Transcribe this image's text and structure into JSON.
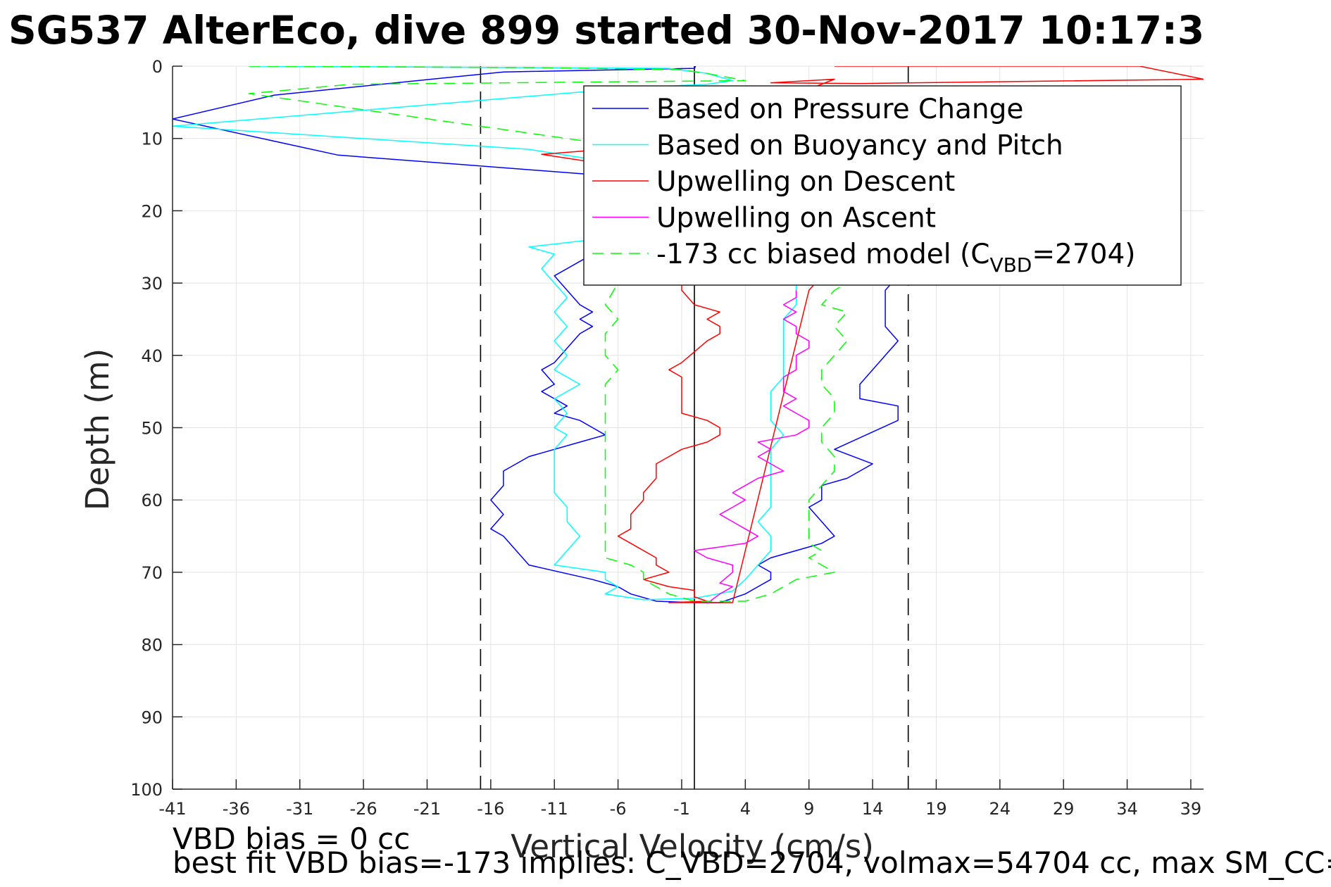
{
  "chart_data": {
    "type": "line",
    "title": "SG537 AlterEco, dive 899 started 30-Nov-2017 10:17:3",
    "xlabel": "Vertical Velocity (cm/s)",
    "ylabel": "Depth (m)",
    "xlim": [
      -41,
      40
    ],
    "ylim": [
      0,
      100
    ],
    "y_reversed": true,
    "grid": true,
    "x_ticks": [
      -41,
      -36,
      -31,
      -26,
      -21,
      -16,
      -11,
      -6,
      -1,
      4,
      9,
      14,
      19,
      24,
      29,
      34,
      39
    ],
    "y_ticks": [
      0,
      10,
      20,
      30,
      40,
      50,
      60,
      70,
      80,
      90,
      100
    ],
    "reference_lines": [
      {
        "x": -16.8,
        "style": "dashed",
        "color": "#000000"
      },
      {
        "x": 0,
        "style": "solid",
        "color": "#000000"
      },
      {
        "x": 16.8,
        "style": "dashed",
        "color": "#000000"
      }
    ],
    "legend_position": "top-right",
    "series": [
      {
        "name": "Based on Pressure Change",
        "color": "#0000ff",
        "style": "solid",
        "points": [
          [
            0.1,
            0
          ],
          [
            0.0,
            0.3
          ],
          [
            -15,
            0.8
          ],
          [
            -33,
            4
          ],
          [
            -41,
            7.3
          ],
          [
            -28,
            12.3
          ],
          [
            -8,
            15
          ],
          [
            -6,
            17
          ],
          [
            -5,
            19
          ],
          [
            -3,
            21
          ],
          [
            -5,
            23
          ],
          [
            -7,
            25
          ],
          [
            -9,
            27
          ],
          [
            -11,
            29
          ],
          [
            -10,
            31
          ],
          [
            -9,
            33
          ],
          [
            -8,
            34
          ],
          [
            -9,
            35
          ],
          [
            -8,
            36
          ],
          [
            -9,
            37
          ],
          [
            -10,
            39
          ],
          [
            -11,
            41
          ],
          [
            -12,
            42
          ],
          [
            -11,
            44
          ],
          [
            -12,
            45
          ],
          [
            -11,
            46
          ],
          [
            -10,
            47
          ],
          [
            -11,
            48
          ],
          [
            -9,
            49
          ],
          [
            -8,
            50
          ],
          [
            -7,
            51
          ],
          [
            -9,
            52
          ],
          [
            -13,
            54
          ],
          [
            -15,
            56
          ],
          [
            -15,
            58
          ],
          [
            -16,
            60
          ],
          [
            -15,
            62
          ],
          [
            -16,
            64
          ],
          [
            -15,
            65
          ],
          [
            -14,
            67
          ],
          [
            -13,
            69
          ],
          [
            -8,
            71
          ],
          [
            -6,
            72
          ],
          [
            -5,
            73
          ],
          [
            -3,
            74
          ],
          [
            0,
            74.2
          ],
          [
            2,
            74.2
          ],
          [
            3,
            73.6
          ],
          [
            4,
            73
          ],
          [
            5,
            72
          ],
          [
            6,
            71
          ],
          [
            6,
            70
          ],
          [
            5,
            69
          ],
          [
            6,
            68
          ],
          [
            8,
            67
          ],
          [
            10,
            66
          ],
          [
            11,
            65
          ],
          [
            10,
            63
          ],
          [
            9,
            61
          ],
          [
            10,
            60
          ],
          [
            10,
            58
          ],
          [
            12,
            57
          ],
          [
            14,
            55
          ],
          [
            11,
            53
          ],
          [
            16,
            49
          ],
          [
            16,
            47
          ],
          [
            13,
            46
          ],
          [
            13,
            44
          ],
          [
            14,
            42
          ],
          [
            15,
            40
          ],
          [
            16,
            38
          ],
          [
            15,
            36
          ],
          [
            15,
            31
          ],
          [
            16,
            29
          ]
        ]
      },
      {
        "name": "Based on Buoyancy and Pitch",
        "color": "#00ffff",
        "style": "solid",
        "points": [
          [
            -35,
            0
          ],
          [
            -2,
            0.3
          ],
          [
            1,
            1
          ],
          [
            3,
            2
          ],
          [
            1,
            2.5
          ],
          [
            -5,
            3
          ],
          [
            -41,
            8.3
          ],
          [
            -13,
            11.5
          ],
          [
            -4,
            14
          ],
          [
            -3,
            16
          ],
          [
            -3,
            19
          ],
          [
            -5,
            22
          ],
          [
            -8,
            24
          ],
          [
            -13,
            25
          ],
          [
            -11,
            26
          ],
          [
            -12,
            28
          ],
          [
            -11,
            30
          ],
          [
            -10,
            32
          ],
          [
            -11,
            34
          ],
          [
            -10,
            36
          ],
          [
            -11,
            38
          ],
          [
            -10,
            40
          ],
          [
            -11,
            42
          ],
          [
            -9,
            44
          ],
          [
            -11,
            46
          ],
          [
            -10,
            48
          ],
          [
            -11,
            50
          ],
          [
            -10,
            51
          ],
          [
            -11,
            53
          ],
          [
            -11,
            55
          ],
          [
            -11,
            57
          ],
          [
            -11,
            59
          ],
          [
            -10,
            61
          ],
          [
            -10,
            63
          ],
          [
            -9,
            65
          ],
          [
            -10,
            67
          ],
          [
            -11,
            69
          ],
          [
            -7,
            70
          ],
          [
            -7,
            71
          ],
          [
            -6,
            72
          ],
          [
            -7,
            73
          ],
          [
            -4,
            73.8
          ],
          [
            0,
            73.6
          ],
          [
            3,
            72.6
          ],
          [
            4,
            71
          ],
          [
            5,
            69
          ],
          [
            6,
            67
          ],
          [
            6,
            65
          ],
          [
            5,
            63
          ],
          [
            6,
            61
          ],
          [
            6,
            59
          ],
          [
            6,
            56
          ],
          [
            6,
            53
          ],
          [
            7,
            51
          ],
          [
            6,
            49
          ],
          [
            6,
            47
          ],
          [
            6,
            45
          ],
          [
            7,
            43
          ],
          [
            7,
            40
          ],
          [
            7,
            38
          ],
          [
            7,
            35
          ],
          [
            8,
            33
          ],
          [
            8,
            30
          ]
        ]
      },
      {
        "name": "Upwelling on Descent",
        "color": "#ff0000",
        "style": "solid",
        "points": [
          [
            11,
            0
          ],
          [
            35,
            0
          ],
          [
            40,
            1.8
          ],
          [
            13,
            2.4
          ],
          [
            6,
            2.3
          ],
          [
            11,
            1.8
          ],
          [
            -2,
            10.8
          ],
          [
            -12,
            12.2
          ],
          [
            -9,
            13
          ],
          [
            -5,
            14
          ],
          [
            -1,
            30
          ],
          [
            -1,
            31
          ],
          [
            0,
            33
          ],
          [
            2,
            34
          ],
          [
            1,
            35
          ],
          [
            2,
            36
          ],
          [
            2,
            37
          ],
          [
            1,
            38
          ],
          [
            -1,
            41
          ],
          [
            -2,
            42
          ],
          [
            -1,
            43
          ],
          [
            -1,
            45
          ],
          [
            -1,
            47
          ],
          [
            -1,
            48
          ],
          [
            1,
            49
          ],
          [
            2,
            50
          ],
          [
            2,
            51
          ],
          [
            1,
            52
          ],
          [
            -1,
            53
          ],
          [
            -2,
            54
          ],
          [
            -3,
            55
          ],
          [
            -3,
            57
          ],
          [
            -4,
            59
          ],
          [
            -4,
            60
          ],
          [
            -5,
            62
          ],
          [
            -5,
            64
          ],
          [
            -6,
            65
          ],
          [
            -5,
            66
          ],
          [
            -3,
            68
          ],
          [
            -3,
            69
          ],
          [
            -2,
            70
          ],
          [
            -4,
            71
          ],
          [
            -2,
            72
          ],
          [
            0,
            72.5
          ],
          [
            0,
            73.4
          ],
          [
            1,
            74
          ],
          [
            -2,
            74.2
          ],
          [
            3,
            74.2
          ],
          [
            9,
            31
          ],
          [
            10,
            29
          ]
        ]
      },
      {
        "name": "Upwelling on Ascent",
        "color": "#ff00ff",
        "style": "solid",
        "points": [
          [
            1,
            74.3
          ],
          [
            2,
            73
          ],
          [
            3,
            72
          ],
          [
            2,
            71.5
          ],
          [
            3,
            70
          ],
          [
            3,
            69
          ],
          [
            1,
            68
          ],
          [
            0,
            67
          ],
          [
            4,
            66
          ],
          [
            5,
            65
          ],
          [
            4,
            64
          ],
          [
            3,
            63
          ],
          [
            2,
            62
          ],
          [
            3,
            61
          ],
          [
            4,
            60
          ],
          [
            3,
            59
          ],
          [
            4,
            58
          ],
          [
            5,
            57
          ],
          [
            7,
            56
          ],
          [
            6,
            55
          ],
          [
            5,
            54
          ],
          [
            6,
            53
          ],
          [
            5,
            52
          ],
          [
            8,
            51
          ],
          [
            9,
            50
          ],
          [
            9,
            49
          ],
          [
            8,
            48
          ],
          [
            7,
            47
          ],
          [
            8,
            46
          ],
          [
            7,
            45
          ],
          [
            7,
            44
          ],
          [
            7,
            43
          ],
          [
            8,
            42
          ],
          [
            8,
            41
          ],
          [
            8,
            40
          ],
          [
            9,
            39
          ],
          [
            9,
            38
          ],
          [
            8,
            37
          ],
          [
            8,
            36
          ],
          [
            7,
            35
          ],
          [
            8,
            34
          ],
          [
            7,
            33
          ],
          [
            8,
            32
          ],
          [
            8,
            31
          ]
        ]
      },
      {
        "name": "-173 cc biased model (C",
        "name_sub": "VBD",
        "name_suffix": "=2704)",
        "color": "#00ff00",
        "style": "dashed",
        "points": [
          [
            -35,
            0
          ],
          [
            -12,
            0.2
          ],
          [
            -1,
            0.5
          ],
          [
            1,
            1
          ],
          [
            4,
            2
          ],
          [
            -27,
            2.5
          ],
          [
            -35,
            3.8
          ],
          [
            -6,
            11
          ],
          [
            -7,
            13
          ],
          [
            -6,
            15
          ],
          [
            -6,
            25
          ],
          [
            -6,
            30
          ],
          [
            -7,
            33
          ],
          [
            -6,
            35
          ],
          [
            -7,
            37
          ],
          [
            -7,
            40
          ],
          [
            -6,
            42
          ],
          [
            -7,
            44
          ],
          [
            -7,
            46
          ],
          [
            -7,
            48
          ],
          [
            -7,
            50
          ],
          [
            -7,
            52
          ],
          [
            -7,
            55
          ],
          [
            -7,
            58
          ],
          [
            -7,
            60
          ],
          [
            -7,
            62
          ],
          [
            -7,
            65
          ],
          [
            -7,
            68
          ],
          [
            -5,
            69
          ],
          [
            -4,
            70
          ],
          [
            -4,
            71
          ],
          [
            -3,
            72
          ],
          [
            -2,
            73
          ],
          [
            0,
            74
          ],
          [
            4,
            74
          ],
          [
            6,
            73
          ],
          [
            7,
            72
          ],
          [
            8,
            71
          ],
          [
            11,
            70
          ],
          [
            10,
            69
          ],
          [
            9,
            68
          ],
          [
            10,
            67
          ],
          [
            9,
            66
          ],
          [
            9,
            64
          ],
          [
            9,
            62
          ],
          [
            9,
            60
          ],
          [
            10,
            58
          ],
          [
            11,
            56
          ],
          [
            11,
            54
          ],
          [
            10,
            52
          ],
          [
            10,
            50
          ],
          [
            11,
            48
          ],
          [
            11,
            46
          ],
          [
            10,
            44
          ],
          [
            10,
            42
          ],
          [
            11,
            40
          ],
          [
            12,
            38
          ],
          [
            11,
            36
          ],
          [
            12,
            34
          ],
          [
            10,
            33
          ],
          [
            11,
            31
          ],
          [
            12,
            30
          ]
        ]
      }
    ]
  },
  "footer": {
    "line1": "VBD bias = 0 cc",
    "line2": "best fit VBD bias=-173 implies: C_VBD=2704, volmax=54704 cc, max SM_CC="
  }
}
